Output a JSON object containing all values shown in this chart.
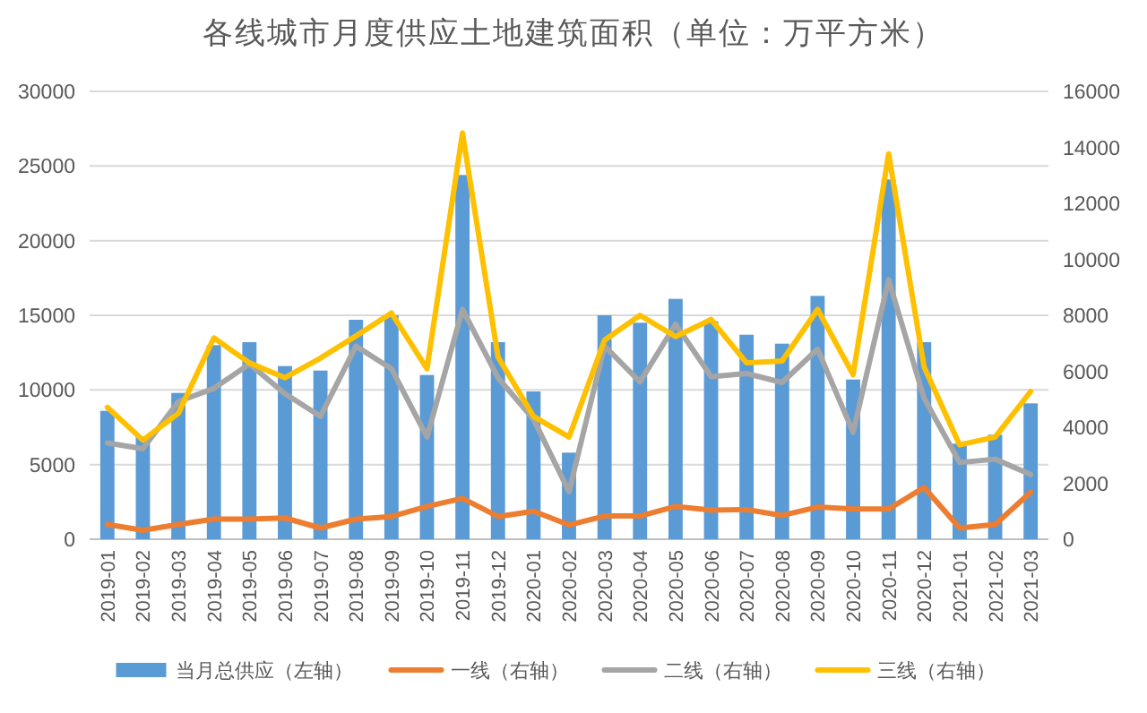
{
  "chart_data": {
    "type": "bar",
    "title": "各线城市月度供应土地建筑面积（单位：万平方米）",
    "categories": [
      "2019-01",
      "2019-02",
      "2019-03",
      "2019-04",
      "2019-05",
      "2019-06",
      "2019-07",
      "2019-08",
      "2019-09",
      "2019-10",
      "2019-11",
      "2019-12",
      "2020-01",
      "2020-02",
      "2020-03",
      "2020-04",
      "2020-05",
      "2020-06",
      "2020-07",
      "2020-08",
      "2020-09",
      "2020-10",
      "2020-11",
      "2020-12",
      "2021-01",
      "2021-02",
      "2021-03"
    ],
    "series": [
      {
        "name": "当月总供应（左轴）",
        "color": "#5b9bd5",
        "values": [
          8600,
          6900,
          9800,
          13000,
          13200,
          11600,
          11300,
          14700,
          15000,
          11000,
          24400,
          13200,
          9900,
          5800,
          15000,
          14500,
          16100,
          14600,
          13700,
          13100,
          16300,
          10700,
          24100,
          13200,
          6400,
          7000,
          9100
        ]
      },
      {
        "name": "一线（右轴）",
        "type": "line",
        "axis": "y2",
        "color": "#ed7d31",
        "values": [
          530,
          320,
          530,
          720,
          720,
          760,
          400,
          720,
          810,
          1170,
          1460,
          810,
          1000,
          510,
          830,
          830,
          1170,
          1040,
          1060,
          850,
          1150,
          1080,
          1080,
          1850,
          400,
          530,
          1680
        ]
      },
      {
        "name": "二线（右轴）",
        "type": "line",
        "axis": "y2",
        "color": "#a5a5a5",
        "values": [
          3440,
          3230,
          4920,
          5390,
          6260,
          5200,
          4390,
          6900,
          6090,
          3650,
          8210,
          5770,
          4290,
          1700,
          6900,
          5620,
          7680,
          5810,
          5920,
          5600,
          6790,
          3820,
          9270,
          5030,
          2740,
          2860,
          2310
        ]
      },
      {
        "name": "三线（右轴）",
        "type": "line",
        "axis": "y2",
        "color": "#ffc000",
        "values": [
          4710,
          3540,
          4500,
          7190,
          6300,
          5770,
          6470,
          7260,
          8080,
          6090,
          14510,
          6510,
          4390,
          3650,
          7110,
          8000,
          7240,
          7850,
          6300,
          6370,
          8210,
          5880,
          13770,
          6150,
          3370,
          3650,
          5280
        ]
      }
    ],
    "ylim": [
      0,
      30000
    ],
    "yticks": [
      0,
      5000,
      10000,
      15000,
      20000,
      25000,
      30000
    ],
    "y2lim": [
      0,
      16000
    ],
    "y2ticks": [
      0,
      2000,
      4000,
      6000,
      8000,
      10000,
      12000,
      14000,
      16000
    ],
    "grid": "y",
    "legend": "bottom"
  }
}
